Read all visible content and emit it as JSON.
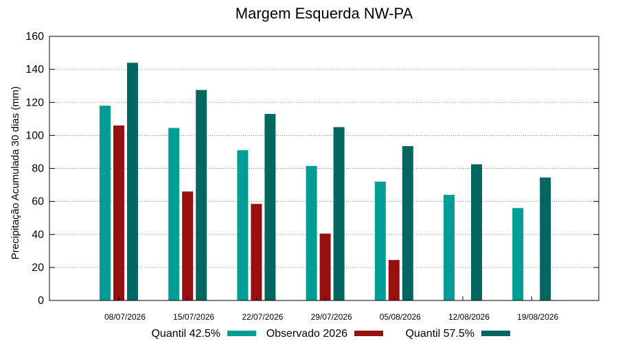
{
  "chart_data": {
    "type": "bar",
    "title": "Margem Esquerda NW-PA",
    "xlabel": "",
    "ylabel": "Precipitação Acumulada 30 dias (mm)",
    "ylim": [
      0,
      160
    ],
    "yticks": [
      0,
      20,
      40,
      60,
      80,
      100,
      120,
      140,
      160
    ],
    "grid": true,
    "legend_position": "bottom",
    "categories": [
      "08/07/2026",
      "15/07/2026",
      "22/07/2026",
      "29/07/2026",
      "05/08/2026",
      "12/08/2026",
      "19/08/2026"
    ],
    "series": [
      {
        "name": "Quantil 42.5%",
        "color": "#009c96",
        "values": [
          118,
          104.5,
          91,
          81.5,
          72,
          64,
          56
        ]
      },
      {
        "name": "Observado 2026",
        "color": "#970f0f",
        "values": [
          106,
          66,
          58.5,
          40.5,
          24.5,
          null,
          null
        ]
      },
      {
        "name": "Quantil 57.5%",
        "color": "#00665f",
        "values": [
          144,
          127.5,
          113,
          105,
          93.5,
          82.5,
          74.5
        ]
      }
    ]
  }
}
